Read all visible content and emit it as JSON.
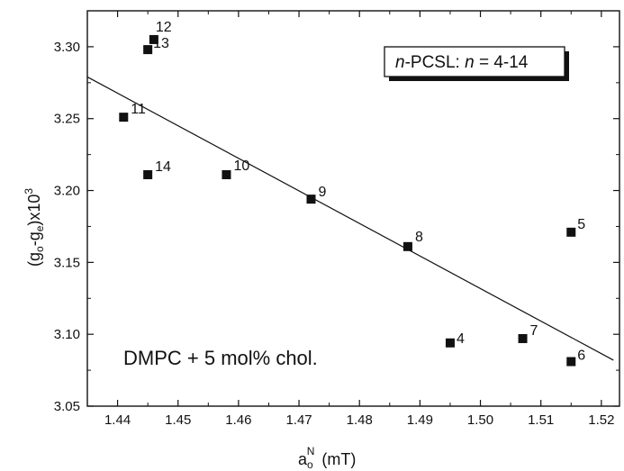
{
  "chart_data": {
    "type": "scatter",
    "title": "",
    "xlabel": {
      "base": "a",
      "subscript": "o",
      "superscript": "N",
      "unit": "(mT)"
    },
    "ylabel": {
      "prefix": "(g",
      "sub1": "o",
      "middle": "-g",
      "sub2": "e",
      "suffix": ")x10",
      "sup": "3"
    },
    "xlim": [
      1.435,
      1.523
    ],
    "ylim": [
      3.05,
      3.325
    ],
    "x_ticks": [
      1.44,
      1.45,
      1.46,
      1.47,
      1.48,
      1.49,
      1.5,
      1.51,
      1.52
    ],
    "x_tick_labels": [
      "1.44",
      "1.45",
      "1.46",
      "1.47",
      "1.48",
      "1.49",
      "1.50",
      "1.51",
      "1.52"
    ],
    "y_ticks": [
      3.05,
      3.1,
      3.15,
      3.2,
      3.25,
      3.3
    ],
    "y_tick_labels": [
      "3.05",
      "3.10",
      "3.15",
      "3.20",
      "3.25",
      "3.30"
    ],
    "grid": false,
    "series": [
      {
        "points": [
          {
            "label": "4",
            "x": 1.495,
            "y": 3.094
          },
          {
            "label": "5",
            "x": 1.515,
            "y": 3.171
          },
          {
            "label": "6",
            "x": 1.515,
            "y": 3.081
          },
          {
            "label": "7",
            "x": 1.507,
            "y": 3.097
          },
          {
            "label": "8",
            "x": 1.488,
            "y": 3.161
          },
          {
            "label": "9",
            "x": 1.472,
            "y": 3.194
          },
          {
            "label": "10",
            "x": 1.458,
            "y": 3.211
          },
          {
            "label": "11",
            "x": 1.441,
            "y": 3.251
          },
          {
            "label": "12",
            "x": 1.446,
            "y": 3.305
          },
          {
            "label": "13",
            "x": 1.445,
            "y": 3.298
          },
          {
            "label": "14",
            "x": 1.445,
            "y": 3.211
          }
        ]
      }
    ],
    "fit_line": {
      "x": [
        1.435,
        1.522
      ],
      "y": [
        3.279,
        3.082
      ]
    },
    "annotation": "DMPC + 5 mol% chol.",
    "legend_box": {
      "italic_part": "n",
      "text_part": "-PCSL:  ",
      "italic_part_2": "n",
      "text_part_2": " = 4-14",
      "position": "top-right"
    }
  }
}
